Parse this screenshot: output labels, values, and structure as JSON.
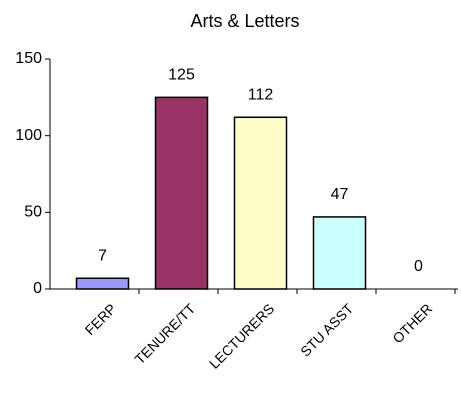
{
  "chart_data": {
    "type": "bar",
    "title": "Arts & Letters",
    "categories": [
      "FERP",
      "TENURE/TT",
      "LECTURERS",
      "STU ASST",
      "OTHER"
    ],
    "values": [
      7,
      125,
      112,
      47,
      0
    ],
    "colors": [
      "#9999ff",
      "#993366",
      "#ffffcc",
      "#ccffff",
      "#ffffff"
    ],
    "ylim": [
      0,
      150
    ],
    "yticks": [
      0,
      50,
      100,
      150
    ],
    "grid": false
  }
}
